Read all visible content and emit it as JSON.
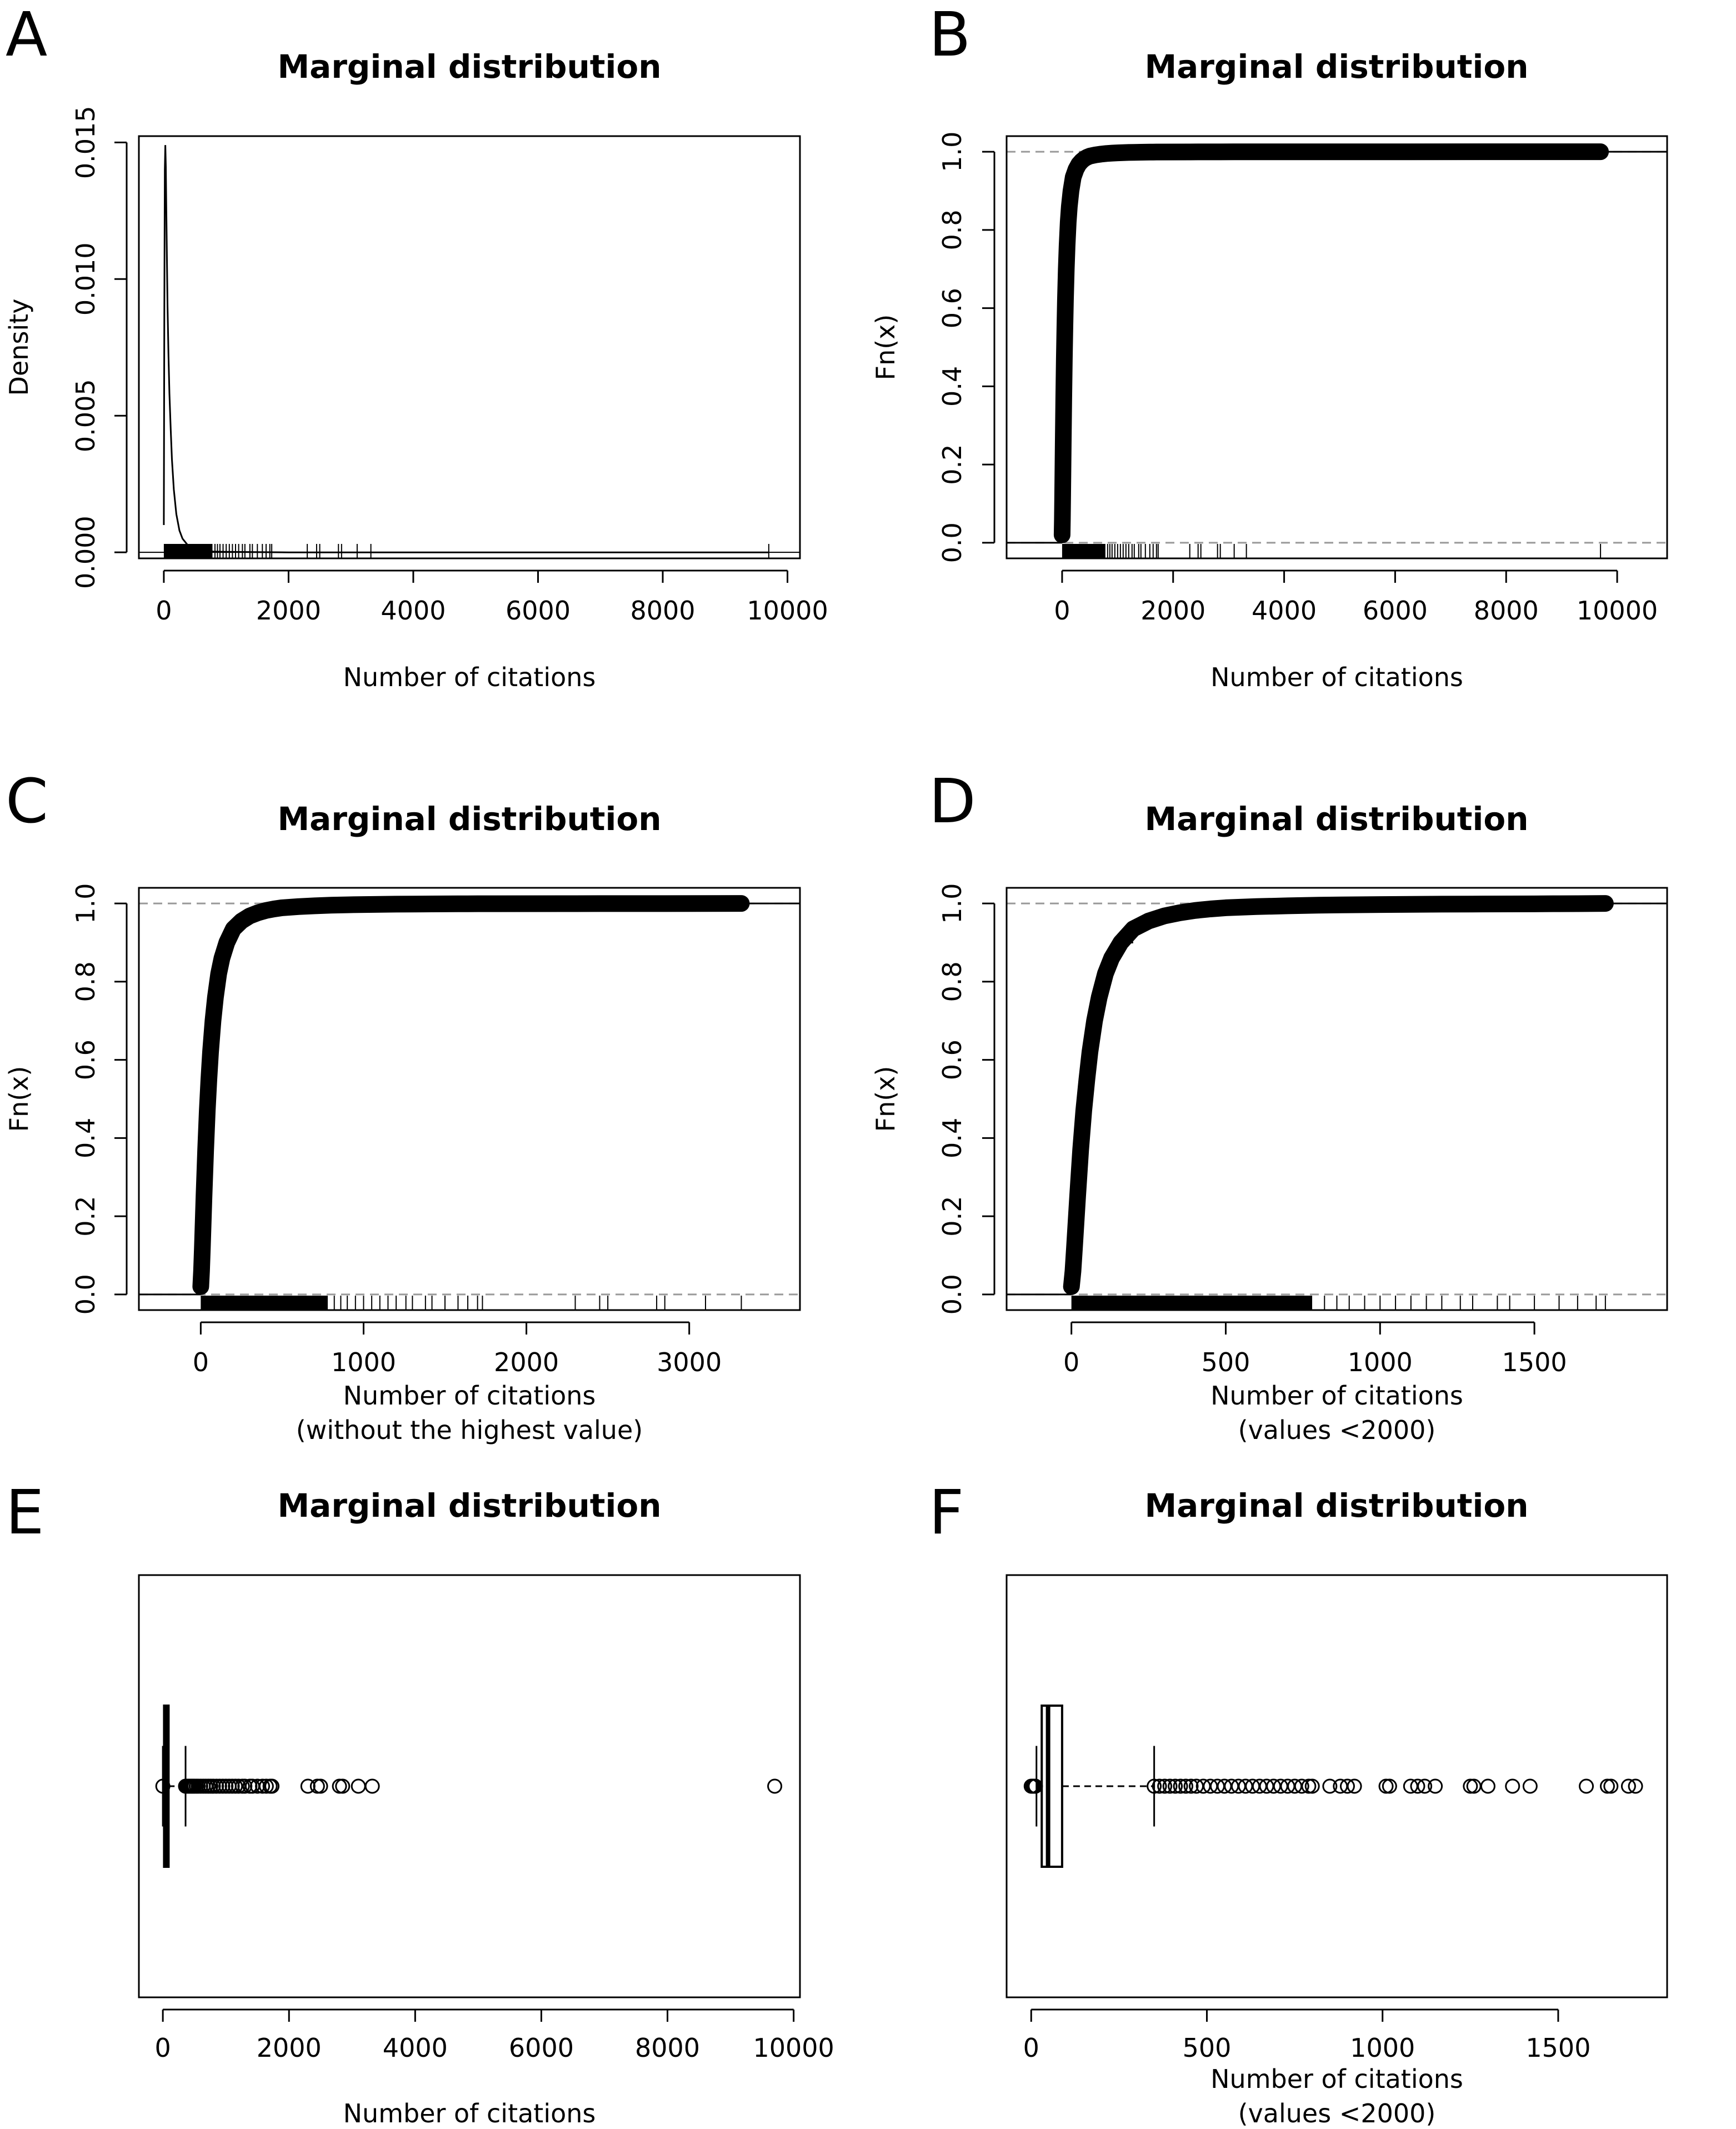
{
  "figure": {
    "panel_letters": [
      "A",
      "B",
      "C",
      "D",
      "E",
      "F"
    ]
  },
  "chart_data": [
    {
      "panel": "A",
      "type": "line",
      "title": "Marginal distribution",
      "xlabel": "Number of citations",
      "ylabel": "Density",
      "xlim": [
        -400,
        10200
      ],
      "ylim": [
        -0.00022,
        0.01523
      ],
      "xticks": [
        0,
        2000,
        4000,
        6000,
        8000,
        10000
      ],
      "yticks": [
        0.0,
        0.005,
        0.01,
        0.015
      ],
      "ytick_labels": [
        "0.000",
        "0.005",
        "0.010",
        "0.015"
      ],
      "series": [
        {
          "name": "density",
          "x": [
            0,
            8,
            16,
            24,
            32,
            40,
            50,
            60,
            75,
            90,
            110,
            130,
            160,
            200,
            250,
            300,
            400,
            500,
            650,
            800,
            1000,
            1500,
            2000,
            3000,
            5000,
            9700
          ],
          "y": [
            0.001,
            0.0087,
            0.014,
            0.0149,
            0.0141,
            0.0125,
            0.0107,
            0.009,
            0.0072,
            0.0058,
            0.0045,
            0.0034,
            0.0023,
            0.0014,
            0.0008,
            0.0005,
            0.00022,
            0.00012,
            6e-05,
            3e-05,
            2e-05,
            1e-05,
            0.0,
            0.0,
            0.0,
            0.0
          ]
        }
      ],
      "rug": {
        "dense_range": [
          0,
          780
        ],
        "sparse": [
          820,
          860,
          900,
          950,
          1000,
          1050,
          1100,
          1150,
          1200,
          1260,
          1300,
          1380,
          1420,
          1500,
          1580,
          1640,
          1700,
          1730,
          2300,
          2450,
          2500,
          2800,
          2850,
          3100,
          3320,
          9700
        ]
      },
      "hline": 0
    },
    {
      "panel": "B",
      "type": "line",
      "title": "Marginal distribution",
      "xlabel": "Number of citations",
      "ylabel": "Fn(x)",
      "xlim": [
        -1000,
        10900
      ],
      "ylim": [
        -0.04,
        1.04
      ],
      "xticks": [
        0,
        2000,
        4000,
        6000,
        8000,
        10000
      ],
      "yticks": [
        0.0,
        0.2,
        0.4,
        0.6,
        0.8,
        1.0
      ],
      "ytick_labels": [
        "0.0",
        "0.2",
        "0.4",
        "0.6",
        "0.8",
        "1.0"
      ],
      "series": [
        {
          "name": "ecdf",
          "x": [
            0,
            5,
            10,
            20,
            30,
            40,
            50,
            60,
            75,
            90,
            110,
            130,
            160,
            200,
            250,
            300,
            350,
            400,
            450,
            500,
            600,
            700,
            800,
            900,
            1000,
            1100,
            1200,
            1300,
            1420,
            1500,
            1580,
            1640,
            1700,
            1730,
            2300,
            2450,
            2500,
            2800,
            2850,
            3100,
            3320,
            9700
          ],
          "y": [
            0.02,
            0.06,
            0.12,
            0.25,
            0.37,
            0.47,
            0.55,
            0.62,
            0.7,
            0.76,
            0.82,
            0.86,
            0.9,
            0.935,
            0.955,
            0.968,
            0.976,
            0.982,
            0.986,
            0.989,
            0.992,
            0.994,
            0.9955,
            0.9965,
            0.9972,
            0.9978,
            0.9982,
            0.9985,
            0.9988,
            0.999,
            0.9991,
            0.9992,
            0.9993,
            0.9994,
            0.9995,
            0.9996,
            0.9996,
            0.9997,
            0.9997,
            0.9998,
            0.9998,
            1.0
          ]
        }
      ],
      "hlines": [
        0,
        1
      ],
      "rug": {
        "dense_range": [
          0,
          780
        ],
        "sparse": [
          820,
          860,
          900,
          950,
          1000,
          1050,
          1100,
          1150,
          1200,
          1260,
          1300,
          1380,
          1420,
          1500,
          1580,
          1640,
          1700,
          1730,
          2300,
          2450,
          2500,
          2800,
          2850,
          3100,
          3320,
          9700
        ]
      }
    },
    {
      "panel": "C",
      "type": "line",
      "title": "Marginal distribution",
      "xlabel": "Number of citations",
      "xlabel2": "(without the highest value)",
      "ylabel": "Fn(x)",
      "xlim": [
        -380,
        3680
      ],
      "ylim": [
        -0.04,
        1.04
      ],
      "xticks": [
        0,
        1000,
        2000,
        3000
      ],
      "yticks": [
        0.0,
        0.2,
        0.4,
        0.6,
        0.8,
        1.0
      ],
      "ytick_labels": [
        "0.0",
        "0.2",
        "0.4",
        "0.6",
        "0.8",
        "1.0"
      ],
      "series": [
        {
          "name": "ecdf",
          "x": [
            0,
            5,
            10,
            20,
            30,
            40,
            50,
            60,
            75,
            90,
            110,
            130,
            160,
            200,
            250,
            300,
            350,
            400,
            450,
            500,
            600,
            700,
            800,
            900,
            1000,
            1100,
            1200,
            1300,
            1420,
            1500,
            1580,
            1640,
            1700,
            1730,
            2300,
            2450,
            2500,
            2800,
            2850,
            3100,
            3320
          ],
          "y": [
            0.02,
            0.06,
            0.12,
            0.25,
            0.37,
            0.47,
            0.55,
            0.62,
            0.7,
            0.76,
            0.82,
            0.86,
            0.9,
            0.935,
            0.955,
            0.968,
            0.976,
            0.982,
            0.986,
            0.989,
            0.992,
            0.994,
            0.9955,
            0.9965,
            0.9972,
            0.9978,
            0.9982,
            0.9985,
            0.9988,
            0.999,
            0.9991,
            0.9992,
            0.9993,
            0.9994,
            0.9995,
            0.9996,
            0.9996,
            0.9997,
            0.9997,
            0.9998,
            1.0
          ]
        }
      ],
      "hlines": [
        0,
        1
      ],
      "rug": {
        "dense_range": [
          0,
          780
        ],
        "sparse": [
          820,
          860,
          900,
          950,
          1000,
          1050,
          1100,
          1150,
          1200,
          1260,
          1300,
          1380,
          1420,
          1500,
          1580,
          1640,
          1700,
          1730,
          2300,
          2450,
          2500,
          2800,
          2850,
          3100,
          3320
        ]
      }
    },
    {
      "panel": "D",
      "type": "line",
      "title": "Marginal distribution",
      "xlabel": "Number of citations",
      "xlabel2": "(values <2000)",
      "ylabel": "Fn(x)",
      "xlim": [
        -210,
        1930
      ],
      "ylim": [
        -0.04,
        1.04
      ],
      "xticks": [
        0,
        500,
        1000,
        1500
      ],
      "yticks": [
        0.0,
        0.2,
        0.4,
        0.6,
        0.8,
        1.0
      ],
      "ytick_labels": [
        "0.0",
        "0.2",
        "0.4",
        "0.6",
        "0.8",
        "1.0"
      ],
      "series": [
        {
          "name": "ecdf",
          "x": [
            0,
            5,
            10,
            20,
            30,
            40,
            50,
            60,
            75,
            90,
            110,
            130,
            160,
            200,
            250,
            300,
            350,
            400,
            450,
            500,
            600,
            700,
            800,
            900,
            1000,
            1100,
            1200,
            1300,
            1420,
            1500,
            1580,
            1640,
            1700,
            1730
          ],
          "y": [
            0.02,
            0.06,
            0.12,
            0.25,
            0.37,
            0.47,
            0.55,
            0.62,
            0.7,
            0.76,
            0.82,
            0.86,
            0.9,
            0.935,
            0.955,
            0.968,
            0.976,
            0.982,
            0.986,
            0.989,
            0.992,
            0.994,
            0.9955,
            0.9965,
            0.9972,
            0.9978,
            0.9982,
            0.9985,
            0.9988,
            0.999,
            0.9993,
            0.9995,
            0.9998,
            1.0
          ]
        }
      ],
      "hlines": [
        0,
        1
      ],
      "rug": {
        "dense_range": [
          0,
          780
        ],
        "sparse": [
          820,
          860,
          900,
          950,
          1000,
          1050,
          1100,
          1150,
          1200,
          1260,
          1300,
          1380,
          1420,
          1500,
          1580,
          1640,
          1700,
          1730
        ]
      }
    },
    {
      "panel": "E",
      "type": "box",
      "orientation": "horizontal",
      "title": "Marginal distribution",
      "xlabel": "Number of citations",
      "xlim": [
        -380,
        10100
      ],
      "xticks": [
        0,
        2000,
        4000,
        6000,
        8000,
        10000
      ],
      "box": {
        "whisker_low": 0,
        "q1": 20,
        "median": 40,
        "q3": 80,
        "whisker_high": 360
      },
      "outliers": [
        0,
        360,
        380,
        400,
        420,
        440,
        460,
        480,
        500,
        530,
        560,
        600,
        640,
        680,
        720,
        760,
        800,
        850,
        900,
        950,
        1000,
        1050,
        1100,
        1150,
        1200,
        1260,
        1300,
        1380,
        1420,
        1500,
        1580,
        1640,
        1700,
        1730,
        2300,
        2450,
        2500,
        2800,
        2850,
        3100,
        3320,
        9700
      ]
    },
    {
      "panel": "F",
      "type": "box",
      "orientation": "horizontal",
      "title": "Marginal distribution",
      "xlabel": "Number of citations",
      "xlabel2": "(values <2000)",
      "xlim": [
        -70,
        1810
      ],
      "xticks": [
        0,
        500,
        1000,
        1500
      ],
      "box": {
        "whisker_low": 15,
        "q1": 30,
        "median": 48,
        "q3": 88,
        "whisker_high": 350
      },
      "outliers": [
        0,
        4,
        8,
        12,
        350,
        365,
        380,
        395,
        410,
        425,
        440,
        455,
        470,
        490,
        510,
        530,
        550,
        570,
        590,
        610,
        630,
        650,
        670,
        690,
        710,
        730,
        750,
        770,
        790,
        800,
        850,
        880,
        900,
        920,
        1010,
        1020,
        1080,
        1100,
        1120,
        1150,
        1250,
        1260,
        1300,
        1370,
        1420,
        1580,
        1640,
        1650,
        1700,
        1720
      ]
    }
  ]
}
